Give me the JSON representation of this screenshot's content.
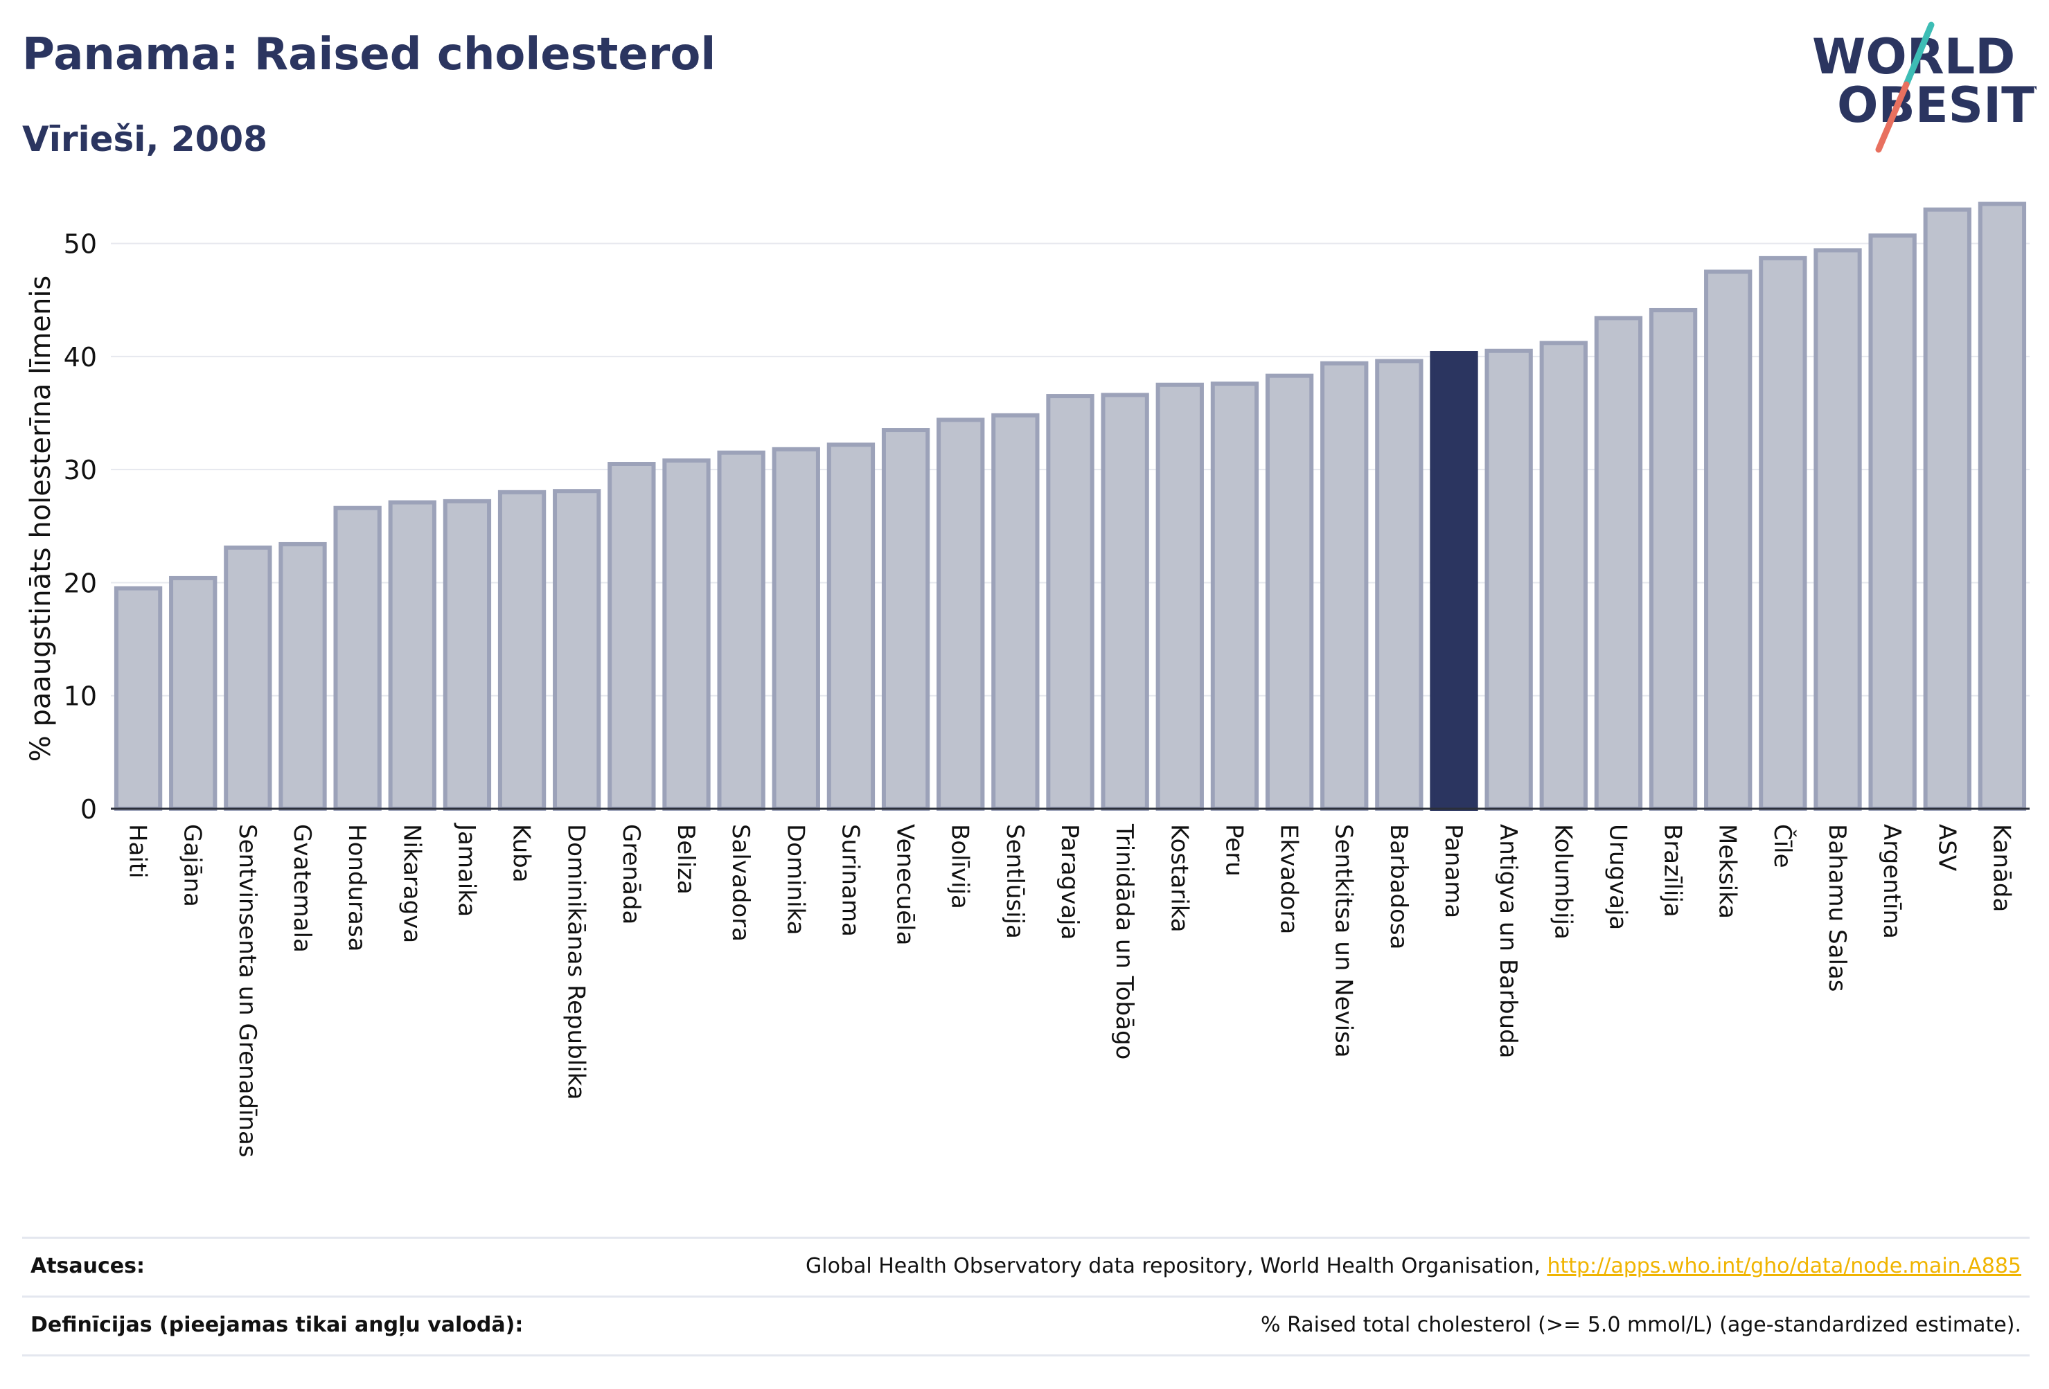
{
  "header": {
    "title": "Panama: Raised cholesterol",
    "subtitle": "Vīrieši, 2008"
  },
  "logo": {
    "line1": "WORLD",
    "line2": "OBESITY",
    "colors": {
      "text": "#2b3560",
      "slash_teal": "#3dbdb5",
      "slash_coral": "#e8705f"
    }
  },
  "chart_data": {
    "type": "bar",
    "title": "Panama: Raised cholesterol",
    "subtitle": "Vīrieši, 2008",
    "xlabel": "",
    "ylabel": "% paaugstināts holesterīna līmenis",
    "ylim": [
      0,
      55
    ],
    "yticks": [
      0,
      10,
      20,
      30,
      40,
      50
    ],
    "grid": true,
    "highlight": "Panama",
    "colors": {
      "bar": "#bec2ce",
      "bar_edge": "#9ca2b9",
      "highlight": "#2b3560",
      "grid": "#e6e8ee",
      "text": "#111111"
    },
    "categories": [
      "Haiti",
      "Gajāna",
      "Sentvinsenta un Grenadīnas",
      "Gvatemala",
      "Hondurasa",
      "Nikaragva",
      "Jamaika",
      "Kuba",
      "Dominikānas Republika",
      "Grenāda",
      "Beliza",
      "Salvadora",
      "Dominika",
      "Surinama",
      "Venecuēla",
      "Bolīvija",
      "Sentlūsija",
      "Paragvaja",
      "Trinidāda un Tobāgo",
      "Kostarika",
      "Peru",
      "Ekvadora",
      "Sentkitsa un Nevisa",
      "Barbadosa",
      "Panama",
      "Antigva un Barbuda",
      "Kolumbija",
      "Urugvaja",
      "Brazīlija",
      "Meksika",
      "Čīle",
      "Bahamu Salas",
      "Argentīna",
      "ASV",
      "Kanāda"
    ],
    "values": [
      19.5,
      20.4,
      23.1,
      23.4,
      26.6,
      27.1,
      27.2,
      28.0,
      28.1,
      30.5,
      30.8,
      31.5,
      31.8,
      32.2,
      33.5,
      34.4,
      34.8,
      36.5,
      36.6,
      37.5,
      37.6,
      38.3,
      39.4,
      39.6,
      40.3,
      40.5,
      41.2,
      43.4,
      44.1,
      47.5,
      48.7,
      49.4,
      50.7,
      53.0,
      53.5
    ]
  },
  "footer": {
    "sources_label": "Atsauces:",
    "sources_text": "Global Health Observatory data repository, World Health Organisation, ",
    "sources_link": "http://apps.who.int/gho/data/node.main.A885",
    "definitions_label": "Definīcijas (pieejamas tikai angļu valodā):",
    "definitions_text": "% Raised total cholesterol (>= 5.0 mmol/L) (age-standardized estimate)."
  }
}
